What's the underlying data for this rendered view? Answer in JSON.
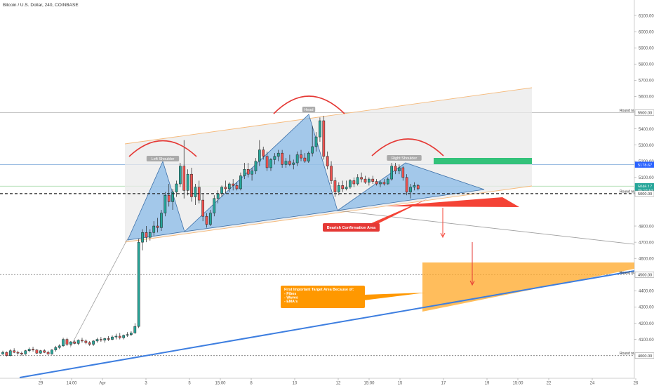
{
  "header": {
    "title": "Bitcoin / U.S. Dollar, 240, COINBASE"
  },
  "chart_data": {
    "type": "candlestick",
    "ylim": [
      3980,
      6150
    ],
    "y_ticks": [
      "6100.00",
      "6000.00",
      "5900.00",
      "5800.00",
      "5700.00",
      "5600.00",
      "5400.00",
      "5300.00",
      "5200.00",
      "5100.00",
      "4800.00",
      "4700.00",
      "4600.00",
      "4400.00",
      "4300.00",
      "4200.00",
      "4100.00"
    ],
    "y_tick_values": [
      6100,
      6000,
      5900,
      5800,
      5700,
      5600,
      5400,
      5300,
      5200,
      5100,
      4800,
      4700,
      4600,
      4400,
      4300,
      4200,
      4100
    ],
    "x_ticks": [
      "29",
      "14:00",
      "Apr",
      "3",
      "5",
      "15:00",
      "8",
      "10",
      "12",
      "15:00",
      "15",
      "17",
      "19",
      "15:00",
      "22",
      "24",
      "26"
    ],
    "price_tags": [
      {
        "label": "5500.00",
        "value": 5500,
        "color": "#ffffff",
        "text_color": "#333333",
        "border": "#888888"
      },
      {
        "label": "5178.67",
        "value": 5178.67,
        "color": "#2962ff",
        "text_color": "#ffffff",
        "border": "#2962ff"
      },
      {
        "label": "5046.17",
        "value": 5046,
        "color": "#26a69a",
        "text_color": "#ffffff",
        "border": "#26a69a"
      },
      {
        "label": "05:24:53",
        "value": 5020,
        "color": "#26a69a",
        "text_color": "#ffffff",
        "border": "#26a69a"
      },
      {
        "label": "5000.00",
        "value": 5000,
        "color": "#ffffff",
        "text_color": "#333333",
        "border": "#888888"
      },
      {
        "label": "4500.00",
        "value": 4500,
        "color": "#ffffff",
        "text_color": "#333333",
        "border": "#888888"
      },
      {
        "label": "4000.00",
        "value": 4000,
        "color": "#ffffff",
        "text_color": "#333333",
        "border": "#888888"
      }
    ],
    "round_labels": [
      {
        "label": "Round nr.",
        "value": 5500
      },
      {
        "label": "Round nr.",
        "value": 5000
      },
      {
        "label": "Round nr.",
        "value": 4500
      },
      {
        "label": "Round nr.",
        "value": 4000
      }
    ],
    "pattern_labels": [
      "Left Shoulder",
      "Head",
      "Right Shoulder"
    ],
    "annotations": {
      "bearish": "Bearish Confirmation Area",
      "target_title": "First Important Target Area Because of:",
      "target_items": [
        "- Fibos",
        "- Waves",
        "- EMA's"
      ]
    },
    "candles": [
      [
        4010,
        4030,
        4005,
        4020
      ],
      [
        4020,
        4025,
        3995,
        4000
      ],
      [
        4000,
        4040,
        3995,
        4030
      ],
      [
        4030,
        4045,
        4015,
        4020
      ],
      [
        4020,
        4030,
        4005,
        4015
      ],
      [
        4015,
        4025,
        4000,
        4010
      ],
      [
        4010,
        4035,
        4005,
        4030
      ],
      [
        4030,
        4050,
        4020,
        4040
      ],
      [
        4040,
        4055,
        4025,
        4035
      ],
      [
        4035,
        4040,
        4010,
        4015
      ],
      [
        4015,
        4035,
        4010,
        4030
      ],
      [
        4030,
        4040,
        4015,
        4020
      ],
      [
        4020,
        4030,
        4005,
        4010
      ],
      [
        4010,
        4040,
        4005,
        4035
      ],
      [
        4035,
        4060,
        4025,
        4050
      ],
      [
        4050,
        4070,
        4040,
        4060
      ],
      [
        4060,
        4110,
        4055,
        4100
      ],
      [
        4100,
        4110,
        4060,
        4070
      ],
      [
        4070,
        4090,
        4060,
        4085
      ],
      [
        4085,
        4095,
        4070,
        4075
      ],
      [
        4075,
        4100,
        4065,
        4095
      ],
      [
        4095,
        4110,
        4080,
        4090
      ],
      [
        4090,
        4100,
        4070,
        4080
      ],
      [
        4080,
        4090,
        4060,
        4070
      ],
      [
        4070,
        4095,
        4060,
        4090
      ],
      [
        4090,
        4110,
        4080,
        4100
      ],
      [
        4100,
        4115,
        4085,
        4095
      ],
      [
        4095,
        4110,
        4080,
        4105
      ],
      [
        4105,
        4120,
        4090,
        4100
      ],
      [
        4100,
        4125,
        4095,
        4115
      ],
      [
        4115,
        4135,
        4100,
        4120
      ],
      [
        4120,
        4140,
        4100,
        4110
      ],
      [
        4110,
        4130,
        4100,
        4125
      ],
      [
        4125,
        4145,
        4115,
        4130
      ],
      [
        4130,
        4150,
        4120,
        4140
      ],
      [
        4140,
        4200,
        4135,
        4180
      ],
      [
        4180,
        4720,
        4170,
        4700
      ],
      [
        4700,
        4780,
        4650,
        4760
      ],
      [
        4760,
        4800,
        4700,
        4730
      ],
      [
        4730,
        4780,
        4710,
        4760
      ],
      [
        4760,
        4830,
        4740,
        4800
      ],
      [
        4800,
        4850,
        4760,
        4790
      ],
      [
        4790,
        4900,
        4770,
        4880
      ],
      [
        4880,
        5010,
        4860,
        4990
      ],
      [
        4990,
        5060,
        4920,
        4950
      ],
      [
        4950,
        5030,
        4900,
        5010
      ],
      [
        5010,
        5080,
        4980,
        5060
      ],
      [
        5060,
        5190,
        5040,
        5170
      ],
      [
        5170,
        5330,
        4970,
        5020
      ],
      [
        5020,
        5150,
        4990,
        5120
      ],
      [
        5120,
        5160,
        4950,
        4980
      ],
      [
        4980,
        5060,
        4930,
        5040
      ],
      [
        5040,
        5080,
        4940,
        4960
      ],
      [
        4960,
        5000,
        4830,
        4860
      ],
      [
        4860,
        4880,
        4790,
        4810
      ],
      [
        4810,
        4900,
        4800,
        4880
      ],
      [
        4880,
        4990,
        4860,
        4970
      ],
      [
        4970,
        5020,
        4940,
        5000
      ],
      [
        5000,
        5050,
        4980,
        5040
      ],
      [
        5040,
        5080,
        5000,
        5030
      ],
      [
        5030,
        5070,
        5010,
        5060
      ],
      [
        5060,
        5090,
        5020,
        5050
      ],
      [
        5050,
        5070,
        5020,
        5030
      ],
      [
        5030,
        5130,
        5020,
        5110
      ],
      [
        5110,
        5190,
        5090,
        5150
      ],
      [
        5150,
        5190,
        5100,
        5120
      ],
      [
        5120,
        5160,
        5080,
        5140
      ],
      [
        5140,
        5220,
        5120,
        5200
      ],
      [
        5200,
        5330,
        5170,
        5270
      ],
      [
        5270,
        5290,
        5210,
        5230
      ],
      [
        5230,
        5260,
        5140,
        5160
      ],
      [
        5160,
        5220,
        5140,
        5210
      ],
      [
        5210,
        5250,
        5180,
        5230
      ],
      [
        5230,
        5270,
        5200,
        5250
      ],
      [
        5250,
        5270,
        5160,
        5180
      ],
      [
        5180,
        5220,
        5160,
        5200
      ],
      [
        5200,
        5240,
        5170,
        5180
      ],
      [
        5180,
        5210,
        5150,
        5190
      ],
      [
        5190,
        5260,
        5170,
        5240
      ],
      [
        5240,
        5270,
        5200,
        5220
      ],
      [
        5220,
        5250,
        5190,
        5200
      ],
      [
        5200,
        5260,
        5190,
        5250
      ],
      [
        5250,
        5420,
        5230,
        5290
      ],
      [
        5290,
        5380,
        5260,
        5350
      ],
      [
        5350,
        5470,
        5320,
        5450
      ],
      [
        5450,
        5480,
        5210,
        5230
      ],
      [
        5230,
        5260,
        5150,
        5170
      ],
      [
        5170,
        5200,
        5060,
        5080
      ],
      [
        5080,
        5100,
        4980,
        5010
      ],
      [
        5010,
        5070,
        4990,
        5050
      ],
      [
        5050,
        5080,
        5010,
        5030
      ],
      [
        5030,
        5080,
        5020,
        5040
      ],
      [
        5040,
        5090,
        5030,
        5080
      ],
      [
        5080,
        5100,
        5040,
        5060
      ],
      [
        5060,
        5120,
        5050,
        5100
      ],
      [
        5100,
        5130,
        5070,
        5090
      ],
      [
        5090,
        5110,
        5060,
        5070
      ],
      [
        5070,
        5100,
        5050,
        5090
      ],
      [
        5090,
        5110,
        5060,
        5075
      ],
      [
        5075,
        5090,
        5050,
        5060
      ],
      [
        5060,
        5080,
        5040,
        5070
      ],
      [
        5070,
        5090,
        5050,
        5060
      ],
      [
        5060,
        5100,
        5055,
        5090
      ],
      [
        5090,
        5190,
        5080,
        5170
      ],
      [
        5170,
        5190,
        5120,
        5140
      ],
      [
        5140,
        5180,
        5120,
        5160
      ],
      [
        5160,
        5170,
        5080,
        5100
      ],
      [
        5100,
        5120,
        4990,
        5010
      ],
      [
        5010,
        5060,
        4970,
        5040
      ],
      [
        5040,
        5070,
        5020,
        5050
      ],
      [
        5050,
        5060,
        5020,
        5030
      ]
    ],
    "candle_x_start": 4,
    "candle_x_step": 5.38
  }
}
